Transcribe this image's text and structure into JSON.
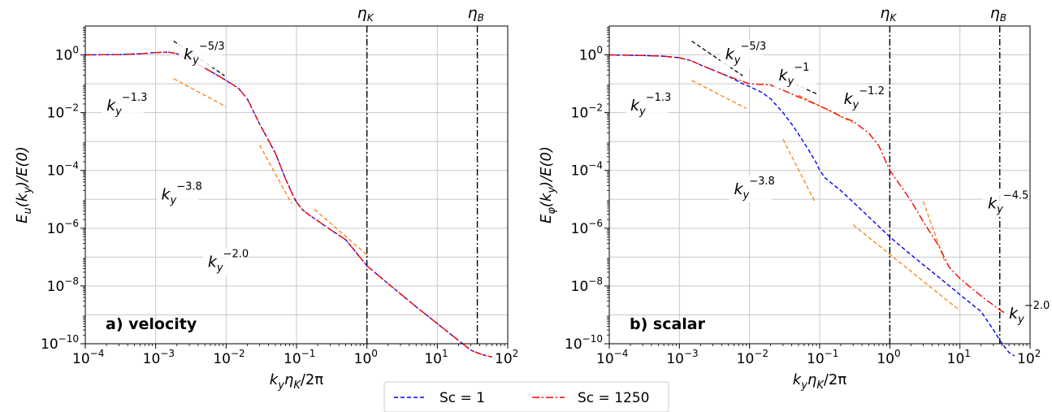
{
  "chart_data": [
    {
      "type": "line",
      "panel_label": "a) velocity",
      "xlabel": "k_yη_K/2π",
      "ylabel": "E_u(k_y)/E(0)",
      "xscale": "log",
      "yscale": "log",
      "xlim": [
        0.0001,
        100
      ],
      "ylim": [
        1e-10,
        10
      ],
      "grid": true,
      "x_ticks": [
        {
          "b": "10",
          "e": "−4"
        },
        {
          "b": "10",
          "e": "−3"
        },
        {
          "b": "10",
          "e": "−2"
        },
        {
          "b": "10",
          "e": "−1"
        },
        {
          "b": "10",
          "e": "0"
        },
        {
          "b": "10",
          "e": "1"
        },
        {
          "b": "10",
          "e": "2"
        }
      ],
      "y_ticks": [
        {
          "b": "10",
          "e": "−10"
        },
        {
          "b": "10",
          "e": "−8"
        },
        {
          "b": "10",
          "e": "−6"
        },
        {
          "b": "10",
          "e": "−4"
        },
        {
          "b": "10",
          "e": "−2"
        },
        {
          "b": "10",
          "e": "0"
        }
      ],
      "vlines": [
        {
          "label": "η",
          "sub": "K",
          "x": 1.0
        },
        {
          "label": "η",
          "sub": "B",
          "x": 37
        }
      ],
      "series": [
        {
          "name": "Sc = 1",
          "color": "#0000ff",
          "dash": "dashed",
          "x": [
            0.0001,
            0.0003,
            0.0006,
            0.001,
            0.0015,
            0.002,
            0.003,
            0.005,
            0.008,
            0.01,
            0.015,
            0.02,
            0.03,
            0.05,
            0.07,
            0.09,
            0.1,
            0.12,
            0.15,
            0.2,
            0.3,
            0.5,
            1,
            2,
            5,
            10,
            20,
            30,
            40,
            50,
            60
          ],
          "y": [
            1.0,
            1.02,
            1.1,
            1.2,
            1.25,
            1.1,
            0.7,
            0.35,
            0.18,
            0.13,
            0.07,
            0.03,
            0.004,
            0.0004,
            5e-05,
            1.3e-05,
            8e-06,
            4.5e-06,
            2.9e-06,
            1.8e-06,
            9e-07,
            4e-07,
            5e-08,
            1.2e-08,
            1.9e-09,
            5e-10,
            1.3e-10,
            6e-11,
            4.5e-11,
            3.8e-11,
            3.5e-11
          ]
        },
        {
          "name": "Sc = 1250",
          "color": "#ff0000",
          "dash": "dashdot",
          "x": [
            0.0001,
            0.0003,
            0.0006,
            0.001,
            0.0015,
            0.002,
            0.003,
            0.005,
            0.008,
            0.01,
            0.015,
            0.02,
            0.03,
            0.05,
            0.07,
            0.09,
            0.1,
            0.12,
            0.15,
            0.2,
            0.3,
            0.5,
            1,
            2,
            5,
            10,
            20,
            30,
            40,
            50,
            60
          ],
          "y": [
            1.0,
            1.02,
            1.1,
            1.2,
            1.25,
            1.1,
            0.7,
            0.35,
            0.18,
            0.13,
            0.07,
            0.03,
            0.004,
            0.0004,
            5e-05,
            1.3e-05,
            8e-06,
            4.5e-06,
            2.9e-06,
            1.8e-06,
            9e-07,
            4e-07,
            5e-08,
            1.2e-08,
            1.9e-09,
            5e-10,
            1.3e-10,
            6e-11,
            4.5e-11,
            3.8e-11,
            3.5e-11
          ]
        }
      ],
      "reference_slopes": [
        {
          "label": "k",
          "sub": "y",
          "exp": "−5/3",
          "color": "#000000",
          "x": [
            0.0018,
            0.0095
          ],
          "y": [
            3.0,
            0.19
          ],
          "label_at": [
            0.0025,
            0.7
          ]
        },
        {
          "label": "k",
          "sub": "y",
          "exp": "−1.3",
          "color": "#ff7f0e",
          "x": [
            0.0018,
            0.01
          ],
          "y": [
            0.15,
            0.016
          ],
          "label_at": [
            0.0002,
            0.012
          ]
        },
        {
          "label": "k",
          "sub": "y",
          "exp": "−3.8",
          "color": "#ff7f0e",
          "x": [
            0.03,
            0.085
          ],
          "y": [
            0.00075,
            7.2e-06
          ],
          "label_at": [
            0.0012,
            1e-05
          ]
        },
        {
          "label": "k",
          "sub": "y",
          "exp": "−2.0",
          "color": "#ff7f0e",
          "x": [
            0.18,
            1.0
          ],
          "y": [
            4.5e-06,
            1.2e-07
          ],
          "label_at": [
            0.0055,
            4.5e-08
          ]
        }
      ]
    },
    {
      "type": "line",
      "panel_label": "b) scalar",
      "xlabel": "k_yη_K/2π",
      "ylabel": "E_φ(k_y)/E(0)",
      "xscale": "log",
      "yscale": "log",
      "xlim": [
        0.0001,
        100
      ],
      "ylim": [
        1e-10,
        10
      ],
      "grid": true,
      "x_ticks": [
        {
          "b": "10",
          "e": "−4"
        },
        {
          "b": "10",
          "e": "−3"
        },
        {
          "b": "10",
          "e": "−2"
        },
        {
          "b": "10",
          "e": "−1"
        },
        {
          "b": "10",
          "e": "0"
        },
        {
          "b": "10",
          "e": "1"
        },
        {
          "b": "10",
          "e": "2"
        }
      ],
      "y_ticks": [
        {
          "b": "10",
          "e": "−10"
        },
        {
          "b": "10",
          "e": "−8"
        },
        {
          "b": "10",
          "e": "−6"
        },
        {
          "b": "10",
          "e": "−4"
        },
        {
          "b": "10",
          "e": "−2"
        },
        {
          "b": "10",
          "e": "0"
        }
      ],
      "vlines": [
        {
          "label": "η",
          "sub": "K",
          "x": 1.0
        },
        {
          "label": "η",
          "sub": "B",
          "x": 37
        }
      ],
      "series": [
        {
          "name": "Sc = 1",
          "color": "#0000ff",
          "dash": "dashed",
          "x": [
            0.0001,
            0.0003,
            0.0006,
            0.001,
            0.0015,
            0.002,
            0.003,
            0.005,
            0.008,
            0.01,
            0.015,
            0.02,
            0.03,
            0.04,
            0.05,
            0.07,
            0.09,
            0.1,
            0.12,
            0.15,
            0.2,
            0.3,
            0.5,
            1,
            2,
            5,
            10,
            20,
            30,
            40,
            50,
            60
          ],
          "y": [
            1.0,
            0.95,
            0.9,
            0.8,
            0.62,
            0.45,
            0.3,
            0.18,
            0.1,
            0.08,
            0.05,
            0.03,
            0.01,
            0.004,
            0.0018,
            0.0005,
            0.00018,
            0.0001,
            5.5e-05,
            3.5e-05,
            2e-05,
            8e-06,
            2.5e-06,
            5e-07,
            1.2e-07,
            2e-08,
            5e-09,
            1.3e-09,
            3e-10,
            1e-10,
            5e-11,
            3.8e-11
          ]
        },
        {
          "name": "Sc = 1250",
          "color": "#ff0000",
          "dash": "dashdot",
          "x": [
            0.0001,
            0.0003,
            0.0006,
            0.001,
            0.0015,
            0.002,
            0.003,
            0.005,
            0.008,
            0.01,
            0.015,
            0.02,
            0.03,
            0.05,
            0.07,
            0.1,
            0.15,
            0.2,
            0.3,
            0.5,
            0.7,
            1,
            1.5,
            2,
            3,
            5,
            7,
            10,
            20,
            40,
            60
          ],
          "y": [
            1.0,
            0.95,
            0.9,
            0.8,
            0.62,
            0.45,
            0.3,
            0.18,
            0.12,
            0.1,
            0.095,
            0.09,
            0.06,
            0.035,
            0.025,
            0.017,
            0.011,
            0.0075,
            0.005,
            0.002,
            0.0007,
            0.0001,
            2.5e-05,
            9e-06,
            1.7e-06,
            2.4e-07,
            4.5e-08,
            1.8e-08,
            4.5e-09,
            1.3e-09,
            9e-10
          ]
        }
      ],
      "reference_slopes": [
        {
          "label": "k",
          "sub": "y",
          "exp": "−5/3",
          "color": "#000000",
          "x": [
            0.0015,
            0.008
          ],
          "y": [
            3.0,
            0.19
          ],
          "label_at": [
            0.0045,
            0.7
          ]
        },
        {
          "label": "k",
          "sub": "y",
          "exp": "−1.3",
          "color": "#ff7f0e",
          "x": [
            0.0015,
            0.009
          ],
          "y": [
            0.13,
            0.014
          ],
          "label_at": [
            0.0002,
            0.012
          ]
        },
        {
          "label": "k",
          "sub": "y",
          "exp": "−1",
          "color": "#000000",
          "x": [
            0.03,
            0.09
          ],
          "y": [
            0.15,
            0.045
          ],
          "label_at": [
            0.026,
            0.13
          ]
        },
        {
          "label": "k",
          "sub": "y",
          "exp": "−1.2",
          "color": "#ff7f0e",
          "x": [
            0.05,
            0.3
          ],
          "y": [
            0.04,
            0.0045
          ],
          "label_at": [
            0.22,
            0.02
          ]
        },
        {
          "label": "k",
          "sub": "y",
          "exp": "−3.8",
          "color": "#ff7f0e",
          "x": [
            0.03,
            0.085
          ],
          "y": [
            0.0012,
            8.5e-06
          ],
          "label_at": [
            0.006,
            1.5e-05
          ]
        },
        {
          "label": "k",
          "sub": "y",
          "exp": "−4.5",
          "color": "#ff7f0e",
          "x": [
            3.0,
            6.0
          ],
          "y": [
            8.5e-06,
            7.5e-08
          ],
          "label_at": [
            25,
            4.8e-06
          ]
        },
        {
          "label": "k",
          "sub": "y",
          "exp": "−2.0",
          "color": "#ff7f0e",
          "x": [
            0.3,
            10
          ],
          "y": [
            1.3e-06,
            1.4e-09
          ],
          "label_at": [
            50,
            7.5e-10
          ]
        }
      ]
    }
  ],
  "legend": {
    "placement": "bottom-center",
    "items": [
      {
        "label": "Sc = 1",
        "color": "#0000ff",
        "dash": "dashed"
      },
      {
        "label": "Sc = 1250",
        "color": "#ff0000",
        "dash": "dashdot"
      }
    ]
  }
}
